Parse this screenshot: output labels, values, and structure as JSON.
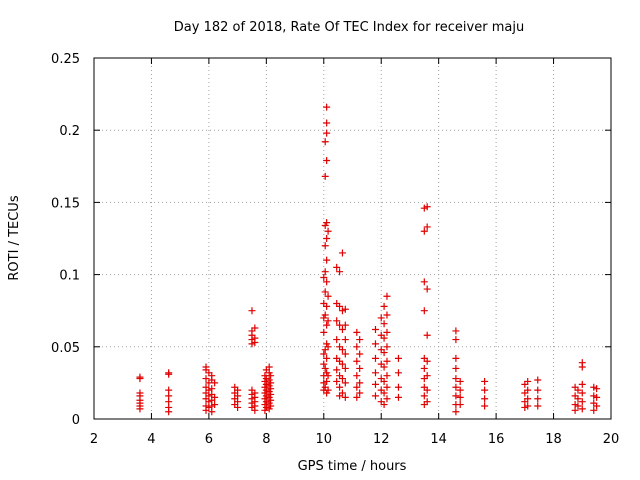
{
  "chart_data": {
    "type": "scatter",
    "title": "Day 182 of 2018, Rate Of TEC Index for receiver maju",
    "xlabel": "GPS time / hours",
    "ylabel": "ROTI / TECUs",
    "xlim": [
      2,
      20
    ],
    "ylim": [
      0,
      0.25
    ],
    "xticks": [
      2,
      4,
      6,
      8,
      10,
      12,
      14,
      16,
      18,
      20
    ],
    "xtick_labels": [
      "2",
      "4",
      "6",
      "8",
      "10",
      "12",
      "14",
      "16",
      "18",
      "20"
    ],
    "yticks": [
      0,
      0.05,
      0.1,
      0.15,
      0.2,
      0.25
    ],
    "ytick_labels": [
      "0",
      "0.05",
      "0.1",
      "0.15",
      "0.2",
      "0.25"
    ],
    "grid": true,
    "marker": "+",
    "color": "#e00000",
    "series": [
      {
        "name": "ROTI",
        "points": [
          [
            3.6,
            0.029
          ],
          [
            3.6,
            0.028
          ],
          [
            3.6,
            0.018
          ],
          [
            3.6,
            0.016
          ],
          [
            3.6,
            0.013
          ],
          [
            3.6,
            0.011
          ],
          [
            3.6,
            0.009
          ],
          [
            3.6,
            0.007
          ],
          [
            4.6,
            0.032
          ],
          [
            4.6,
            0.031
          ],
          [
            4.6,
            0.02
          ],
          [
            4.6,
            0.016
          ],
          [
            4.6,
            0.012
          ],
          [
            4.6,
            0.008
          ],
          [
            4.6,
            0.005
          ],
          [
            5.9,
            0.036
          ],
          [
            5.9,
            0.034
          ],
          [
            5.9,
            0.028
          ],
          [
            5.9,
            0.022
          ],
          [
            5.9,
            0.018
          ],
          [
            5.9,
            0.014
          ],
          [
            5.9,
            0.009
          ],
          [
            5.9,
            0.006
          ],
          [
            6.0,
            0.032
          ],
          [
            6.0,
            0.025
          ],
          [
            6.0,
            0.02
          ],
          [
            6.0,
            0.016
          ],
          [
            6.0,
            0.012
          ],
          [
            6.0,
            0.008
          ],
          [
            6.1,
            0.03
          ],
          [
            6.1,
            0.027
          ],
          [
            6.1,
            0.021
          ],
          [
            6.1,
            0.017
          ],
          [
            6.1,
            0.013
          ],
          [
            6.1,
            0.009
          ],
          [
            6.1,
            0.005
          ],
          [
            6.2,
            0.025
          ],
          [
            6.2,
            0.015
          ],
          [
            6.2,
            0.01
          ],
          [
            6.9,
            0.022
          ],
          [
            6.9,
            0.018
          ],
          [
            6.9,
            0.014
          ],
          [
            6.9,
            0.01
          ],
          [
            7.0,
            0.02
          ],
          [
            7.0,
            0.016
          ],
          [
            7.0,
            0.012
          ],
          [
            7.0,
            0.008
          ],
          [
            7.5,
            0.075
          ],
          [
            7.5,
            0.061
          ],
          [
            7.5,
            0.058
          ],
          [
            7.5,
            0.055
          ],
          [
            7.5,
            0.052
          ],
          [
            7.5,
            0.02
          ],
          [
            7.5,
            0.017
          ],
          [
            7.5,
            0.014
          ],
          [
            7.5,
            0.011
          ],
          [
            7.5,
            0.008
          ],
          [
            7.6,
            0.063
          ],
          [
            7.6,
            0.056
          ],
          [
            7.6,
            0.053
          ],
          [
            7.6,
            0.018
          ],
          [
            7.6,
            0.015
          ],
          [
            7.6,
            0.012
          ],
          [
            7.6,
            0.009
          ],
          [
            7.6,
            0.006
          ],
          [
            7.95,
            0.03
          ],
          [
            7.95,
            0.026
          ],
          [
            7.95,
            0.022
          ],
          [
            7.95,
            0.018
          ],
          [
            7.95,
            0.014
          ],
          [
            7.95,
            0.01
          ],
          [
            7.95,
            0.006
          ],
          [
            8.0,
            0.034
          ],
          [
            8.0,
            0.028
          ],
          [
            8.0,
            0.024
          ],
          [
            8.0,
            0.02
          ],
          [
            8.0,
            0.016
          ],
          [
            8.0,
            0.012
          ],
          [
            8.0,
            0.008
          ],
          [
            8.1,
            0.036
          ],
          [
            8.1,
            0.032
          ],
          [
            8.1,
            0.027
          ],
          [
            8.1,
            0.023
          ],
          [
            8.1,
            0.019
          ],
          [
            8.1,
            0.015
          ],
          [
            8.1,
            0.011
          ],
          [
            8.1,
            0.007
          ],
          [
            8.15,
            0.03
          ],
          [
            8.15,
            0.025
          ],
          [
            8.15,
            0.021
          ],
          [
            8.15,
            0.017
          ],
          [
            8.15,
            0.013
          ],
          [
            8.15,
            0.009
          ],
          [
            10.0,
            0.098
          ],
          [
            10.0,
            0.08
          ],
          [
            10.0,
            0.07
          ],
          [
            10.0,
            0.06
          ],
          [
            10.0,
            0.045
          ],
          [
            10.0,
            0.038
          ],
          [
            10.0,
            0.03
          ],
          [
            10.0,
            0.025
          ],
          [
            10.0,
            0.02
          ],
          [
            10.05,
            0.192
          ],
          [
            10.05,
            0.168
          ],
          [
            10.05,
            0.134
          ],
          [
            10.05,
            0.12
          ],
          [
            10.05,
            0.102
          ],
          [
            10.05,
            0.088
          ],
          [
            10.05,
            0.072
          ],
          [
            10.05,
            0.048
          ],
          [
            10.05,
            0.035
          ],
          [
            10.05,
            0.022
          ],
          [
            10.1,
            0.216
          ],
          [
            10.1,
            0.205
          ],
          [
            10.1,
            0.198
          ],
          [
            10.1,
            0.179
          ],
          [
            10.1,
            0.136
          ],
          [
            10.1,
            0.125
          ],
          [
            10.1,
            0.11
          ],
          [
            10.1,
            0.095
          ],
          [
            10.1,
            0.078
          ],
          [
            10.1,
            0.065
          ],
          [
            10.1,
            0.052
          ],
          [
            10.1,
            0.042
          ],
          [
            10.1,
            0.032
          ],
          [
            10.1,
            0.026
          ],
          [
            10.1,
            0.018
          ],
          [
            10.15,
            0.13
          ],
          [
            10.15,
            0.085
          ],
          [
            10.15,
            0.068
          ],
          [
            10.15,
            0.05
          ],
          [
            10.15,
            0.03
          ],
          [
            10.15,
            0.02
          ],
          [
            10.45,
            0.105
          ],
          [
            10.45,
            0.08
          ],
          [
            10.45,
            0.068
          ],
          [
            10.45,
            0.055
          ],
          [
            10.45,
            0.042
          ],
          [
            10.45,
            0.034
          ],
          [
            10.45,
            0.026
          ],
          [
            10.55,
            0.102
          ],
          [
            10.55,
            0.078
          ],
          [
            10.55,
            0.065
          ],
          [
            10.55,
            0.05
          ],
          [
            10.55,
            0.04
          ],
          [
            10.55,
            0.03
          ],
          [
            10.55,
            0.022
          ],
          [
            10.55,
            0.016
          ],
          [
            10.65,
            0.115
          ],
          [
            10.65,
            0.075
          ],
          [
            10.65,
            0.062
          ],
          [
            10.65,
            0.048
          ],
          [
            10.65,
            0.038
          ],
          [
            10.65,
            0.028
          ],
          [
            10.65,
            0.018
          ],
          [
            10.75,
            0.076
          ],
          [
            10.75,
            0.065
          ],
          [
            10.75,
            0.055
          ],
          [
            10.75,
            0.045
          ],
          [
            10.75,
            0.035
          ],
          [
            10.75,
            0.025
          ],
          [
            10.75,
            0.015
          ],
          [
            11.15,
            0.06
          ],
          [
            11.15,
            0.05
          ],
          [
            11.15,
            0.04
          ],
          [
            11.15,
            0.03
          ],
          [
            11.15,
            0.022
          ],
          [
            11.15,
            0.015
          ],
          [
            11.25,
            0.055
          ],
          [
            11.25,
            0.045
          ],
          [
            11.25,
            0.035
          ],
          [
            11.25,
            0.025
          ],
          [
            11.25,
            0.018
          ],
          [
            11.8,
            0.062
          ],
          [
            11.8,
            0.052
          ],
          [
            11.8,
            0.042
          ],
          [
            11.8,
            0.032
          ],
          [
            11.8,
            0.024
          ],
          [
            11.8,
            0.016
          ],
          [
            12.0,
            0.07
          ],
          [
            12.0,
            0.058
          ],
          [
            12.0,
            0.048
          ],
          [
            12.0,
            0.038
          ],
          [
            12.0,
            0.028
          ],
          [
            12.0,
            0.02
          ],
          [
            12.0,
            0.012
          ],
          [
            12.1,
            0.078
          ],
          [
            12.1,
            0.066
          ],
          [
            12.1,
            0.056
          ],
          [
            12.1,
            0.046
          ],
          [
            12.1,
            0.036
          ],
          [
            12.1,
            0.026
          ],
          [
            12.1,
            0.018
          ],
          [
            12.1,
            0.01
          ],
          [
            12.2,
            0.085
          ],
          [
            12.2,
            0.072
          ],
          [
            12.2,
            0.06
          ],
          [
            12.2,
            0.05
          ],
          [
            12.2,
            0.04
          ],
          [
            12.2,
            0.03
          ],
          [
            12.2,
            0.022
          ],
          [
            12.2,
            0.014
          ],
          [
            12.6,
            0.042
          ],
          [
            12.6,
            0.032
          ],
          [
            12.6,
            0.022
          ],
          [
            12.6,
            0.015
          ],
          [
            13.5,
            0.146
          ],
          [
            13.5,
            0.13
          ],
          [
            13.5,
            0.095
          ],
          [
            13.5,
            0.075
          ],
          [
            13.5,
            0.042
          ],
          [
            13.5,
            0.035
          ],
          [
            13.5,
            0.028
          ],
          [
            13.5,
            0.022
          ],
          [
            13.5,
            0.016
          ],
          [
            13.5,
            0.01
          ],
          [
            13.6,
            0.147
          ],
          [
            13.6,
            0.133
          ],
          [
            13.6,
            0.09
          ],
          [
            13.6,
            0.058
          ],
          [
            13.6,
            0.04
          ],
          [
            13.6,
            0.03
          ],
          [
            13.6,
            0.02
          ],
          [
            13.6,
            0.012
          ],
          [
            14.6,
            0.061
          ],
          [
            14.6,
            0.055
          ],
          [
            14.6,
            0.042
          ],
          [
            14.6,
            0.035
          ],
          [
            14.6,
            0.028
          ],
          [
            14.6,
            0.022
          ],
          [
            14.6,
            0.016
          ],
          [
            14.6,
            0.01
          ],
          [
            14.6,
            0.005
          ],
          [
            14.75,
            0.026
          ],
          [
            14.75,
            0.02
          ],
          [
            14.75,
            0.015
          ],
          [
            14.75,
            0.01
          ],
          [
            15.6,
            0.026
          ],
          [
            15.6,
            0.02
          ],
          [
            15.6,
            0.014
          ],
          [
            15.6,
            0.009
          ],
          [
            17.0,
            0.024
          ],
          [
            17.0,
            0.018
          ],
          [
            17.0,
            0.012
          ],
          [
            17.0,
            0.008
          ],
          [
            17.1,
            0.026
          ],
          [
            17.1,
            0.02
          ],
          [
            17.1,
            0.014
          ],
          [
            17.1,
            0.009
          ],
          [
            17.45,
            0.027
          ],
          [
            17.45,
            0.02
          ],
          [
            17.45,
            0.014
          ],
          [
            17.45,
            0.009
          ],
          [
            18.75,
            0.022
          ],
          [
            18.75,
            0.016
          ],
          [
            18.75,
            0.01
          ],
          [
            18.75,
            0.006
          ],
          [
            18.85,
            0.02
          ],
          [
            18.85,
            0.014
          ],
          [
            18.85,
            0.009
          ],
          [
            19.0,
            0.039
          ],
          [
            19.0,
            0.036
          ],
          [
            19.0,
            0.024
          ],
          [
            19.0,
            0.018
          ],
          [
            19.0,
            0.012
          ],
          [
            19.0,
            0.007
          ],
          [
            19.4,
            0.022
          ],
          [
            19.4,
            0.016
          ],
          [
            19.4,
            0.011
          ],
          [
            19.4,
            0.006
          ],
          [
            19.5,
            0.021
          ],
          [
            19.5,
            0.015
          ],
          [
            19.5,
            0.009
          ]
        ]
      }
    ]
  }
}
